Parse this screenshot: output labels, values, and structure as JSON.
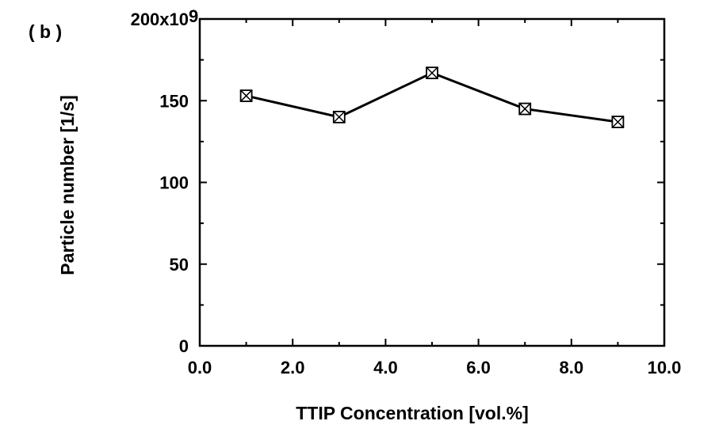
{
  "panel_label": "( b )",
  "chart_data": {
    "type": "line",
    "title": "",
    "xlabel": "TTIP Concentration  [vol.%]",
    "ylabel": "Particle number  [1/s]",
    "xlim": [
      0,
      10
    ],
    "ylim": [
      0,
      200
    ],
    "x_ticks": [
      0,
      2,
      4,
      6,
      8,
      10
    ],
    "x_tick_labels": [
      "0.0",
      "2.0",
      "4.0",
      "6.0",
      "8.0",
      "10.0"
    ],
    "y_ticks": [
      0,
      50,
      100,
      150,
      200
    ],
    "y_tick_labels": [
      "0",
      "50",
      "100",
      "150",
      "200x10"
    ],
    "y_scale_exponent": "9",
    "grid": false,
    "marker": "boxed-x",
    "series": [
      {
        "x": [
          1,
          3,
          5,
          7,
          9
        ],
        "y": [
          153,
          140,
          167,
          145,
          137
        ]
      }
    ]
  }
}
